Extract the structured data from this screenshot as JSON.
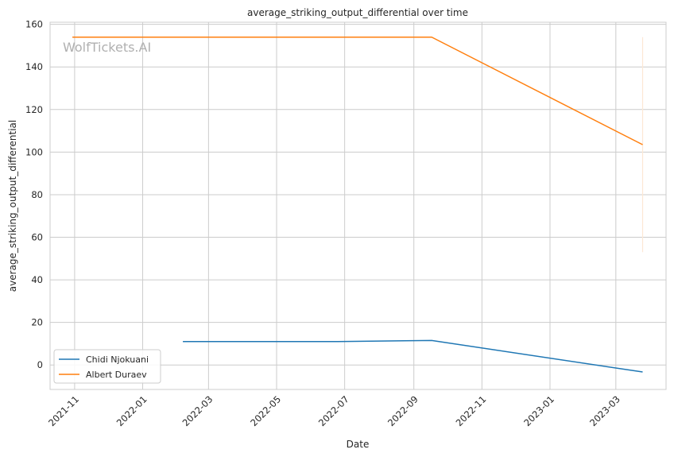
{
  "chart_data": {
    "type": "line",
    "title": "average_striking_output_differential over time",
    "xlabel": "Date",
    "ylabel": "average_striking_output_differential",
    "watermark": "WolfTickets.AI",
    "x_ticks": [
      "2021-11",
      "2022-01",
      "2022-03",
      "2022-05",
      "2022-07",
      "2022-09",
      "2022-11",
      "2023-01",
      "2023-03"
    ],
    "y_ticks": [
      0,
      20,
      40,
      60,
      80,
      100,
      120,
      140,
      160
    ],
    "xlim": [
      "2021-10-10",
      "2023-04-15"
    ],
    "ylim": [
      -11.5,
      161
    ],
    "grid": true,
    "legend_position": "lower-left",
    "series": [
      {
        "name": "Chidi Njokuani",
        "color": "#1f77b4",
        "points": [
          {
            "x": "2022-02-06",
            "y": 11.0
          },
          {
            "x": "2022-06-25",
            "y": 11.0
          },
          {
            "x": "2022-09-17",
            "y": 11.5
          },
          {
            "x": "2023-03-25",
            "y": -3.3
          }
        ]
      },
      {
        "name": "Albert Duraev",
        "color": "#ff7f0e",
        "points": [
          {
            "x": "2021-10-30",
            "y": 154.0
          },
          {
            "x": "2022-09-17",
            "y": 154.0
          },
          {
            "x": "2023-03-25",
            "y": 103.5
          }
        ]
      }
    ],
    "error_bar": {
      "series": "Albert Duraev",
      "x": "2023-03-25",
      "low": 53,
      "high": 154,
      "color": "#fde8d4"
    }
  }
}
